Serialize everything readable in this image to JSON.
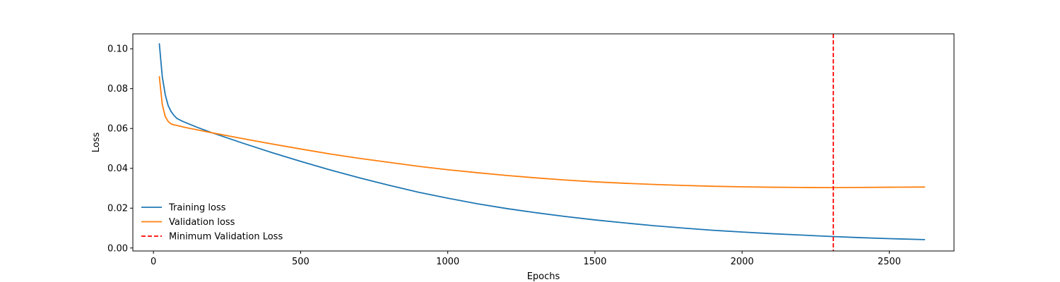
{
  "chart_data": {
    "type": "line",
    "title": "",
    "xlabel": "Epochs",
    "ylabel": "Loss",
    "xlim": [
      -70,
      2720
    ],
    "ylim": [
      -0.0015,
      0.1075
    ],
    "x_ticks": [
      0,
      500,
      1000,
      1500,
      2000,
      2500
    ],
    "x_tick_labels": [
      "0",
      "500",
      "1000",
      "1500",
      "2000",
      "2500"
    ],
    "y_ticks": [
      0.0,
      0.02,
      0.04,
      0.06,
      0.08,
      0.1
    ],
    "y_tick_labels": [
      "0.00",
      "0.02",
      "0.04",
      "0.06",
      "0.08",
      "0.10"
    ],
    "grid": false,
    "legend_position": "lower-left",
    "legend_frame": false,
    "series": [
      {
        "name": "Training loss",
        "color": "#1f77b4",
        "linestyle": "solid",
        "x": [
          20,
          30,
          40,
          50,
          60,
          70,
          80,
          100,
          125,
          150,
          200,
          300,
          400,
          500,
          600,
          700,
          800,
          900,
          1000,
          1100,
          1200,
          1300,
          1400,
          1500,
          1600,
          1700,
          1800,
          1900,
          2000,
          2100,
          2200,
          2300,
          2400,
          2500,
          2620
        ],
        "values": [
          0.1025,
          0.086,
          0.077,
          0.0715,
          0.0685,
          0.0665,
          0.065,
          0.0635,
          0.062,
          0.0605,
          0.0578,
          0.0528,
          0.048,
          0.0435,
          0.0392,
          0.0352,
          0.0315,
          0.028,
          0.025,
          0.0222,
          0.0198,
          0.0177,
          0.0158,
          0.0141,
          0.0126,
          0.0112,
          0.01,
          0.0089,
          0.008,
          0.0072,
          0.0065,
          0.0058,
          0.0052,
          0.0047,
          0.0042
        ]
      },
      {
        "name": "Validation loss",
        "color": "#ff7f0e",
        "linestyle": "solid",
        "x": [
          20,
          30,
          40,
          50,
          60,
          70,
          80,
          100,
          125,
          150,
          200,
          300,
          400,
          500,
          600,
          700,
          800,
          900,
          1000,
          1100,
          1200,
          1300,
          1400,
          1500,
          1600,
          1700,
          1800,
          1900,
          2000,
          2100,
          2200,
          2300,
          2400,
          2500,
          2620
        ],
        "values": [
          0.086,
          0.072,
          0.066,
          0.0635,
          0.0623,
          0.0618,
          0.0615,
          0.0608,
          0.06,
          0.0593,
          0.0578,
          0.055,
          0.0523,
          0.0497,
          0.0472,
          0.045,
          0.043,
          0.041,
          0.0393,
          0.0378,
          0.0364,
          0.0352,
          0.0341,
          0.0332,
          0.0325,
          0.0319,
          0.0314,
          0.031,
          0.0307,
          0.0305,
          0.0304,
          0.0303,
          0.0304,
          0.0305,
          0.0306
        ]
      }
    ],
    "reference_lines": [
      {
        "name": "Minimum Validation Loss",
        "orientation": "vertical",
        "x": 2310,
        "color": "#ff0000",
        "linestyle": "dashed"
      }
    ]
  }
}
